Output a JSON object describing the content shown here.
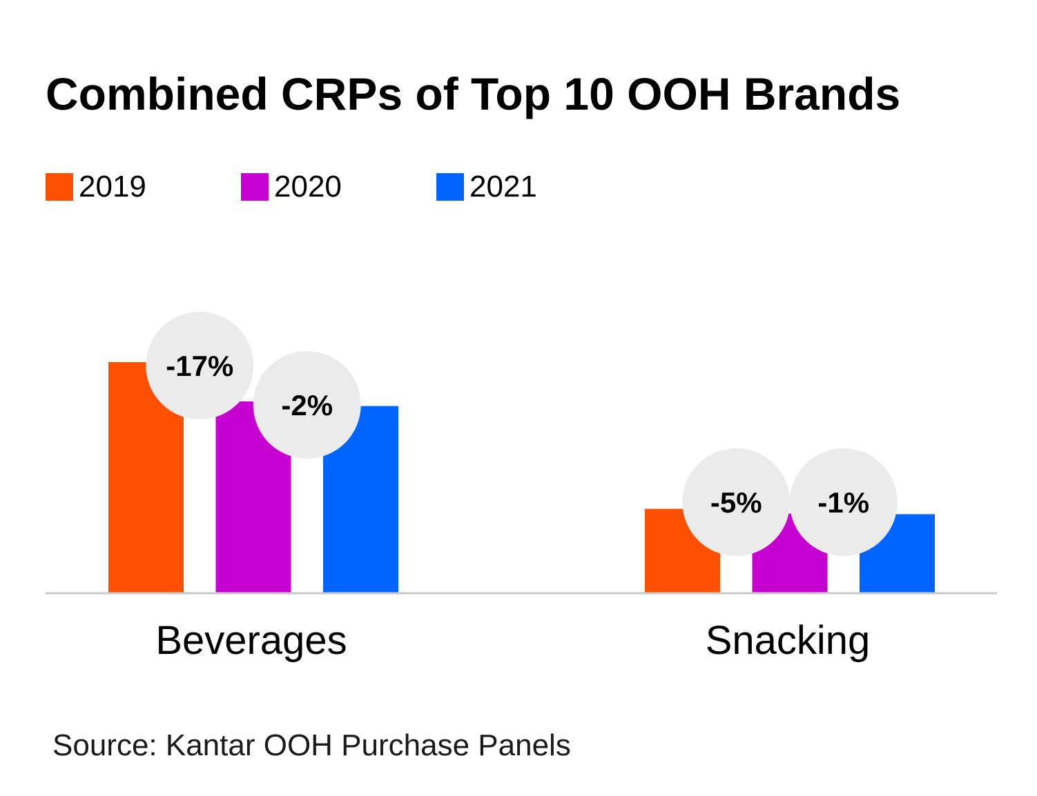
{
  "colors": {
    "2019": "#ff5000",
    "2020": "#c600d0",
    "2021": "#0064ff",
    "badge": "#ebebeb",
    "axis": "#c8c8c8"
  },
  "source": "Source: Kantar OOH Purchase Panels",
  "chart_data": {
    "type": "bar",
    "title": "Combined CRPs of Top 10 OOH Brands",
    "categories": [
      "Beverages",
      "Snacking"
    ],
    "series": [
      {
        "name": "2019",
        "values": [
          100,
          36.5
        ]
      },
      {
        "name": "2020",
        "values": [
          83,
          34.5
        ]
      },
      {
        "name": "2021",
        "values": [
          81,
          34.2
        ]
      }
    ],
    "change_labels": [
      {
        "category": "Beverages",
        "between": [
          "2019",
          "2020"
        ],
        "label": "-17%"
      },
      {
        "category": "Beverages",
        "between": [
          "2020",
          "2021"
        ],
        "label": "-2%"
      },
      {
        "category": "Snacking",
        "between": [
          "2019",
          "2020"
        ],
        "label": "-5%"
      },
      {
        "category": "Snacking",
        "between": [
          "2020",
          "2021"
        ],
        "label": "-1%"
      }
    ],
    "legend_position": "top-left",
    "grid": false,
    "ylim": [
      0,
      100
    ]
  }
}
